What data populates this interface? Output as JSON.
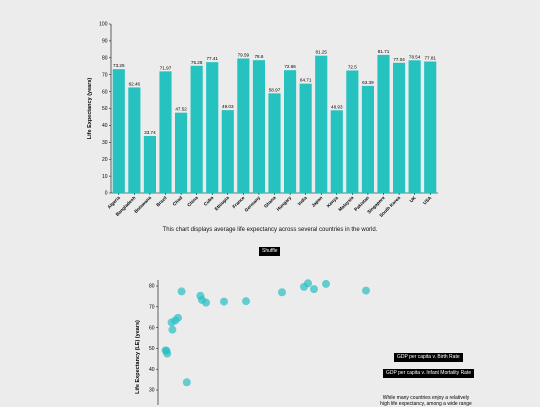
{
  "bar_chart": {
    "ylabel": "Life Expectancy (years)",
    "caption": "This chart displays average life expectancy across several countries in the world."
  },
  "controls": {
    "shuffle_label": "Shuffle",
    "birth_rate_label": "GDP per capita v. Birth Rate",
    "infant_mortality_label": "GDP per capita v. Infant Mortality Rate"
  },
  "scatter": {
    "ylabel": "Life Expectancy (LE) (years)",
    "note": "While many countries enjoy a relatively high life expectancy, among a wide range"
  },
  "colors": {
    "bar": "#26c2c0",
    "point": "#2cbfc4"
  },
  "chart_data": [
    {
      "type": "bar",
      "title": "",
      "xlabel": "",
      "ylabel": "Life Expectancy (years)",
      "ylim": [
        0,
        100
      ],
      "yticks": [
        0,
        10,
        20,
        30,
        40,
        50,
        60,
        70,
        80,
        90,
        100
      ],
      "categories": [
        "Algeria",
        "Bangladesh",
        "Botswana",
        "Brazil",
        "Chad",
        "China",
        "Cuba",
        "Ethiopia",
        "France",
        "Germany",
        "Ghana",
        "Hungary",
        "India",
        "Japan",
        "Kenya",
        "Malaysia",
        "Pakistan",
        "Singapore",
        "South Korea",
        "UK",
        "USA"
      ],
      "values": [
        73.26,
        62.46,
        33.74,
        71.97,
        47.52,
        75.28,
        77.41,
        49.03,
        79.59,
        78.6,
        58.97,
        72.66,
        64.71,
        81.25,
        48.93,
        72.5,
        63.39,
        81.71,
        77.04,
        78.54,
        77.81
      ]
    },
    {
      "type": "scatter",
      "title": "",
      "xlabel": "",
      "ylabel": "Life Expectancy (LE) (years)",
      "ylim": [
        30,
        80
      ],
      "yticks": [
        30,
        40,
        50,
        60,
        70,
        80
      ],
      "xlim": [
        0,
        55000
      ],
      "points": [
        {
          "x": 900,
          "y": 49.0
        },
        {
          "x": 1100,
          "y": 48.9
        },
        {
          "x": 1300,
          "y": 47.5
        },
        {
          "x": 2400,
          "y": 62.5
        },
        {
          "x": 2600,
          "y": 59.0
        },
        {
          "x": 3300,
          "y": 63.4
        },
        {
          "x": 4000,
          "y": 64.7
        },
        {
          "x": 4900,
          "y": 77.4
        },
        {
          "x": 6200,
          "y": 33.7
        },
        {
          "x": 9600,
          "y": 75.3
        },
        {
          "x": 10000,
          "y": 73.3
        },
        {
          "x": 11000,
          "y": 72.0
        },
        {
          "x": 15500,
          "y": 72.5
        },
        {
          "x": 21000,
          "y": 72.7
        },
        {
          "x": 30000,
          "y": 77.0
        },
        {
          "x": 35500,
          "y": 79.6
        },
        {
          "x": 36500,
          "y": 81.3
        },
        {
          "x": 38000,
          "y": 78.5
        },
        {
          "x": 41000,
          "y": 81.0
        },
        {
          "x": 51000,
          "y": 77.8
        }
      ]
    }
  ]
}
